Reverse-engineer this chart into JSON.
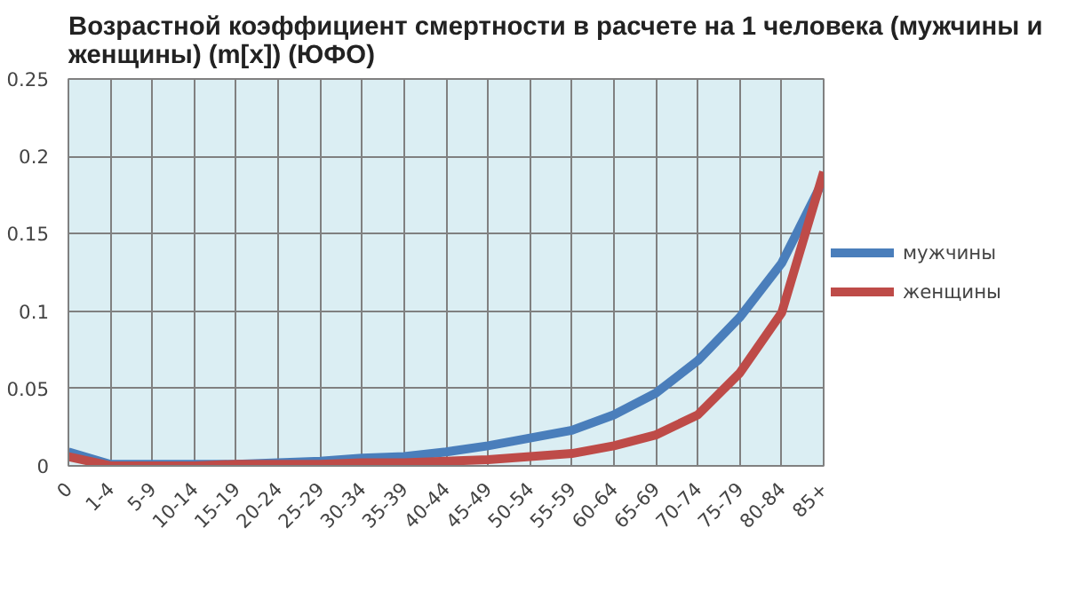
{
  "chart_data": {
    "type": "line",
    "title": "Возрастной коэффициент смертности в расчете на 1 человека (мужчины и женщины) (m[x]) (ЮФО)",
    "categories": [
      "0",
      "1-4",
      "5-9",
      "10-14",
      "15-19",
      "20-24",
      "25-29",
      "30-34",
      "35-39",
      "40-44",
      "45-49",
      "50-54",
      "55-59",
      "60-64",
      "65-69",
      "70-74",
      "75-79",
      "80-84",
      "85+"
    ],
    "series": [
      {
        "name": "мужчины",
        "color": "#4a7ebb",
        "values": [
          0.009,
          0.001,
          0.001,
          0.001,
          0.001,
          0.002,
          0.003,
          0.005,
          0.006,
          0.009,
          0.013,
          0.018,
          0.023,
          0.033,
          0.047,
          0.068,
          0.096,
          0.131,
          0.185
        ]
      },
      {
        "name": "женщины",
        "color": "#be4b48",
        "values": [
          0.006,
          0,
          0,
          0,
          0.001,
          0.001,
          0.001,
          0.002,
          0.002,
          0.003,
          0.004,
          0.006,
          0.008,
          0.013,
          0.02,
          0.033,
          0.06,
          0.099,
          0.19
        ]
      }
    ],
    "ylim": [
      0,
      0.25
    ],
    "yticks": [
      0,
      0.05,
      0.1,
      0.15,
      0.2,
      0.25
    ],
    "grid": true,
    "legend": "right"
  }
}
